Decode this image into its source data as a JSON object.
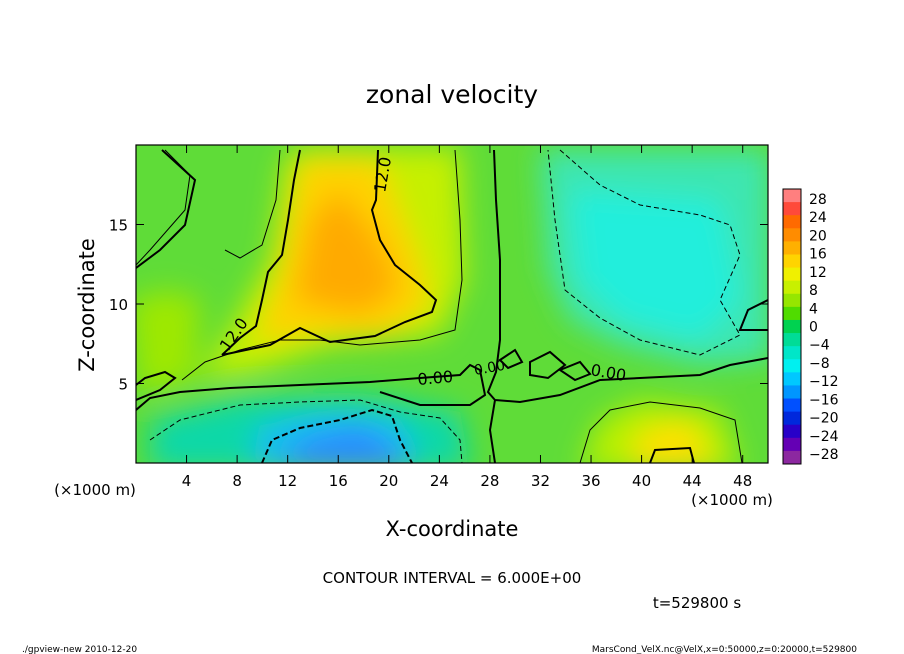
{
  "chart_data": {
    "type": "heatmap",
    "title": "zonal velocity",
    "xlabel": "X-coordinate",
    "ylabel": "Z-coordinate",
    "x_unit_label": "(×1000 m)",
    "z_unit_label": "(×1000 m)",
    "xlim": [
      0,
      50
    ],
    "ylim": [
      0,
      20
    ],
    "x_ticks": [
      4,
      8,
      12,
      16,
      20,
      24,
      28,
      32,
      36,
      40,
      44,
      48
    ],
    "y_ticks": [
      5,
      10,
      15
    ],
    "colorbar": {
      "ticks": [
        28,
        24,
        20,
        16,
        12,
        8,
        4,
        0,
        -4,
        -8,
        -12,
        -16,
        -20,
        -24,
        -28
      ],
      "colors": [
        "#ff7f7f",
        "#ff4a3a",
        "#ff6a00",
        "#ff8c00",
        "#ffb000",
        "#ffd400",
        "#f0f000",
        "#c8f000",
        "#96e600",
        "#50dc00",
        "#00d250",
        "#00dc96",
        "#00e6c8",
        "#00f0f0",
        "#00c8ff",
        "#0096ff",
        "#0050ff",
        "#0028dc",
        "#2800c8",
        "#6400b4",
        "#8c28a0"
      ]
    },
    "contour_labels": [
      "12.0",
      "12.0",
      "0.00",
      "0.00",
      "0.00"
    ],
    "contour_interval_text": "CONTOUR INTERVAL = 6.000E+00",
    "time_text": "t=529800  s",
    "field_regions": [
      {
        "name": "positive-core",
        "x_range": [
          12,
          24
        ],
        "z_range": [
          7,
          20
        ],
        "value_max": 16
      },
      {
        "name": "negative-upper-right",
        "x_range": [
          33,
          50
        ],
        "z_range": [
          7,
          20
        ],
        "value_min": -8
      },
      {
        "name": "negative-lower",
        "x_range": [
          9,
          24
        ],
        "z_range": [
          0,
          4
        ],
        "value_min": -13
      },
      {
        "name": "positive-lower-right",
        "x_range": [
          37,
          47
        ],
        "z_range": [
          0,
          3
        ],
        "value_max": 12
      }
    ]
  },
  "footer": {
    "left": "./gpview-new   2010-12-20",
    "right": "MarsCond_VelX.nc@VelX,x=0:50000,z=0:20000,t=529800"
  }
}
